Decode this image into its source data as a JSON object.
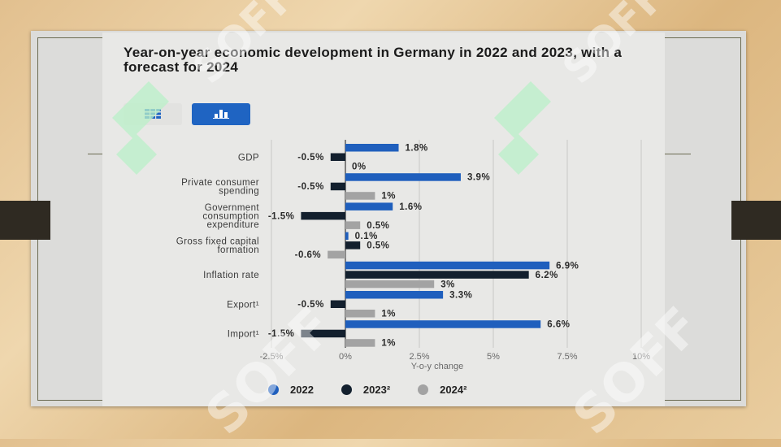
{
  "chart_data": {
    "type": "bar",
    "orientation": "horizontal",
    "title": "Year-on-year economic development in Germany in 2022 and 2023, with a forecast for 2024",
    "xlabel": "Y-o-y change",
    "ylabel": "",
    "xlim": [
      -2.5,
      10
    ],
    "x_ticks": [
      "-2.5%",
      "0%",
      "2.5%",
      "5%",
      "7.5%",
      "10%"
    ],
    "x_tick_values": [
      -2.5,
      0,
      2.5,
      5,
      7.5,
      10
    ],
    "categories": [
      [
        "GDP"
      ],
      [
        "Private consumer",
        "spending"
      ],
      [
        "Government",
        "consumption",
        "expenditure"
      ],
      [
        "Gross fixed capital",
        "formation"
      ],
      [
        "Inflation rate"
      ],
      [
        "Export¹"
      ],
      [
        "Import¹"
      ]
    ],
    "series": [
      {
        "name": "2022",
        "color": "#1f5fbd",
        "values": [
          1.8,
          3.9,
          1.6,
          0.1,
          6.9,
          3.3,
          6.6
        ],
        "labels": [
          "1.8%",
          "3.9%",
          "1.6%",
          "0.1%",
          "6.9%",
          "3.3%",
          "6.6%"
        ]
      },
      {
        "name": "2023²",
        "color": "#13202e",
        "values": [
          -0.5,
          -0.5,
          -1.5,
          0.5,
          6.2,
          -0.5,
          -1.5
        ],
        "labels": [
          "-0.5%",
          "-0.5%",
          "-1.5%",
          "0.5%",
          "6.2%",
          "-0.5%",
          "-1.5%"
        ]
      },
      {
        "name": "2024²",
        "color": "#a3a3a3",
        "values": [
          0,
          1,
          0.5,
          -0.6,
          3,
          1,
          1
        ],
        "labels": [
          "0%",
          "1%",
          "0.5%",
          "-0.6%",
          "3%",
          "1%",
          "1%"
        ]
      }
    ],
    "grid": true,
    "legend": "bottom"
  },
  "toolbar": {
    "table_icon": "table-icon",
    "chart_icon": "bar-chart-icon",
    "active_color": "#1f64c2"
  },
  "watermark": {
    "text": "SOFF",
    "color": "#b9f0c8"
  }
}
